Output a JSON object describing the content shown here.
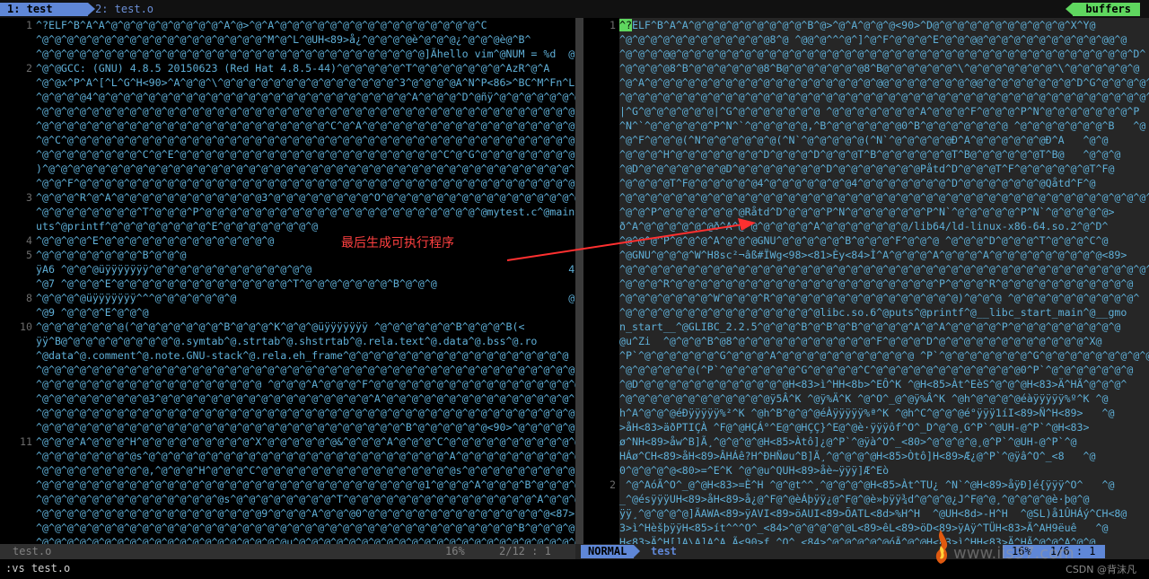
{
  "tabs": [
    {
      "label": "1: test"
    },
    {
      "label": "2: test.o"
    }
  ],
  "buffers_label": "buffers",
  "left_pane": {
    "rows": [
      {
        "n": "1",
        "t": "^?ELF^B^A^A^@^@^@^@^@^@^@^@^@^A^@>^@^A^@^@^@^@^@^@^@^@^@^@^@^@^@^@^@^@^C"
      },
      {
        "n": "",
        "t": "^@^@^@^@^@^@^@^@^@^@^@^@^@^@^@^@^@^@^M^@^L^@UH<89>å¿^@^@^@^@è^@^@^@¿^@^@^@è@^B^"
      },
      {
        "n": "",
        "t": "^@^@^@^@^@^@^@^@^@^@^@^@^@^@^@^@^@^@^@^@^@^@^@^@^@^@^@^@^@^@^@]Ãhello vim^@NUM = %d  @^@"
      },
      {
        "n": "2",
        "t": "^@^@GCC: (GNU) 4.8.5 20150623 (Red Hat 4.8.5-44)^@^@^@^@^@^T^@^@^@^@^@^@^@^AzR^@^A"
      },
      {
        "n": "",
        "t": "^@^@x^P^A^[^L^G^H<90>^A^@^@^\\^@^@^@^@^@^@^@^@^@^@^@^@^@^@^3^@^@^@^@A^N^P<86>^BC^M^Fn^L^G^H^"
      },
      {
        "n": "",
        "t": "^@^@^@^@4^@^@^@^@^@^@^@^@^@^@^@^@^@^@^@^@^@^@^@^@^@^@^@^@^@^A^@^@^@^D^@ñÿ^@^@^@^@^@^@^@"
      },
      {
        "n": "",
        "t": "^@^@^@^@^@^@^@^@^@^@^@^@^@^@^@^@^@^@^@^@^@^@^@^@^@^@^@^@^@^@^@^@^@^@^@^@^@^@^@^@^@^@^@^@"
      },
      {
        "n": "",
        "t": "^@^@^@^@^@^@^@^@^@^@^@^@^@^@^@^@^@^@^@^@^@^@^@^C^@^A^@^@^@^@^@^@^@^@^@^@^@^@^@^@^@^@^@^C"
      },
      {
        "n": "",
        "t": "^@^C^@^@^@^@^@^@^@^@^@^@^@^@^@^@^@^@^@^@^@^@^@^@^@^@^@^@^@^@^@^@^@^@^@^@^@^@^@^@^@^@^@^@^@"
      },
      {
        "n": "",
        "t": "^@^@^@^@^@^@^@^@^C^@^E^@^@^@^@^@^@^@^@^@^@^@^@^@^@^@^@^@^@^@^@^@^C^@^G^@^@^@^@^@^@^@^@^@^@^@"
      },
      {
        "n": "",
        "t": ")^@^@^@^@^@^@^@^@^@^@^@^@^@^@^@^@^@^@^@^@^@^@^@^@^@^@^@^@^@^@^@^@^@^@^@^@^@^@^@^@^@^@^C^@^@^"
      },
      {
        "n": "",
        "t": "^@^@^F^@^@^@^@^@^@^@^@^@^@^@^@^@^@^@^@^@^@^@^@^@^@^@^@^@^@^@^@^@^@^@^@^@^@^@^@^@^@^@^@^@^@"
      },
      {
        "n": "3",
        "t": "^@^@^@^R^@^A^@^@^@^@^@^@^@^@^@^@^@^@3^@^@^@^@^@^@^@^@^O^@^@^@^@^@^@^@^@^@^@^@^@^@^@^@^@^@^@^@"
      },
      {
        "n": "",
        "t": "^@^@^@^@^@^@^@^@^T^@^@^@^P^@^@^@^@^@^@^@^@^@^@^@^@^@^@^@^@^@^@^@^@^@^@^@mytest.c^@main^@p"
      },
      {
        "n": "",
        "t": "uts^@printf^@^@^@^@^@^@^@^@^E^@^@^@^@^@^@^@^@"
      },
      {
        "n": "4",
        "t": "^@^@^@^@^E^@^@^@^@^@^@^@^@^@^@^@^@^@^@"
      },
      {
        "n": "5",
        "t": "^@^@^@^@^@^@^@^@^B^@^@^@"
      },
      {
        "n": "",
        "t": "ÿA6 ^@^@^@üÿÿÿÿÿÿÿ^@^@^@^@^@^@^@^@^@^@^@^@^@                                         4"
      },
      {
        "n": "",
        "t": "^@7 ^@^@^@^E^@^@^@^@^@^@^@^@^@^@^@^@^@^@^T^@^@^@^@^@^@^@^B^@^@^@"
      },
      {
        "n": "8",
        "t": "^@^@^@^@üÿÿÿÿÿÿÿ^^^@^@^@^@^@^@^@                                                     @"
      },
      {
        "n": "",
        "t": "^@9 ^@^@^@^E^@^@^@"
      },
      {
        "n": "10",
        "t": "^@^@^@^@^@^@^@(^@^@^@^@^@^@^@^B^@^@^@^K^@^@^@üÿÿÿÿÿÿÿ ^@^@^@^@^@^@^B^@^@^@^B(<"
      },
      {
        "n": "",
        "t": "ÿÿ^B@^@^@^@^@^@^@^@^@^@.symtab^@.strtab^@.shstrtab^@.rela.text^@.data^@.bss^@.ro"
      },
      {
        "n": "",
        "t": "^@data^@.comment^@.note.GNU-stack^@.rela.eh_frame^@^@^@^@^@^@^@^@^@^@^@^@^@^@^@^@^@^@"
      },
      {
        "n": "",
        "t": "^@^@^@^@^@^@^@^@^@^@^@^@^@^@^@^@^@^@^@^@^@^@^@^@^@^@^@^@^@^@^@^@^@^@^@^@^@^@^@^@^@^@^@^@^@^@"
      },
      {
        "n": "",
        "t": "^@^@^@^@^@^@^@^@^@^@^@^@^@^@^@^@^@^@ ^@^@^@^A^@^@^@^F^@^@^@^@^@^@^@^@^@^@^@^@^@^@^@^@^@^@@^"
      },
      {
        "n": "",
        "t": "^@^@^@^@^@^@^@^@^@3^@^@^@^@^@^@^@^@^@^@^@^@^@^@^@^@^@^A^@^@^@^@^@^@^@^@^@^@^@^@^@^@^@^[^@"
      },
      {
        "n": "",
        "t": "^@^@^@^@^@^@^@^@^@^@^@^@^@^@^@^@^@^@^@^@^@^@^@^@^@^@^@^@^@^@^@^@^@^@^@^@^@^@^@^@^@^@^@^@^@"
      },
      {
        "n": "",
        "t": "^@^@^@^@^@^@^@^@^@^@^@^@^@^@^@^@^@^@^@^@^@^@^@^@^@^@^@^@^@^B^@^@^@^@^@^@<90>^@^@^@^@^@^@^@^@"
      },
      {
        "n": "11",
        "t": "^@^@^@^A^@^@^@^H^@^@^@^@^@^@^@^@^@^X^@^@^@^@^@^@&^@^@^@^A^@^@^@^C^@^@^@^@^@^@^@^@^@^@^@"
      },
      {
        "n": "",
        "t": "^@^@^@^@^@^@^@^@s^@^@^@^@^@^@^@^@^@^@^@^@^@^@^@^@^@^@^@^@^@^@^@^@^A^@^@^@^@^@^@^@^@^@^@^@"
      },
      {
        "n": "",
        "t": "^@^@^@^@^@^@^@^@^@,^@^@^@^H^@^@^@^C^@^@^@^@^@^@^@^@^@^@^@^@^@^@^@^@s^@^@^@^@^@^@^@^@^@^@^@"
      },
      {
        "n": "",
        "t": "^@^@^@^@^@^@^@^@^@^@^@^@^@^@^@^@^@^@^@^@^@^@^@^@^@^@^@^@^@^@^@1^@^@^@^A^@^@^@^B^@^@^@^@^@^@"
      },
      {
        "n": "",
        "t": "^@^@^@^@^@^@^@^@^@^@^@^@^@^@^@s^@^@^@^@^@^@^@^@^T^@^@^@^@^@^@^@^@^@^@^@^@^@^@^@^A^@^@^@^@^@"
      },
      {
        "n": "",
        "t": "^@^@^@^@^@^@^@^@^@^@^@^@^@^@^@^@^@^@9^@^@^@^A^@^@^@0^@^@^@^@^@^@^@^@^@^@^@^@^@^@^@<87>^@^@^@"
      },
      {
        "n": "",
        "t": "^@^@^@^@^@^@^@^@^@^@^@^@^@^@^@^@^@^@^@^@^@^@^@^@^@^@^@^@^@^@^@^@^@^@^@^@^@^@^B^@^@^@^@^@^@^@"
      },
      {
        "n": "",
        "t": "^@^@^@^@^@^@^@^@^@^@^@^@^@^@^@^@^@^@^@^@µ^@^@^@^@^@^@^@^@^@^@^@^@^@^@^@^@^@^@^@^@^@^@^@^@^@"
      },
      {
        "n": "",
        "t": "^@^@^@^@^A^@^@^@^@^@^@^@^@^@^@^@^@^@^@^@^@^@^@^@^@^@W^@^@^@^@^@^@^B^@^@^@^@^@^@^@^@^@^@^@^@^@"
      },
      {
        "n": "",
        "t": "^@^@^@^@^@^@^@^@^@^@^@^@^@^8^@^@^@^@^@^@^@^@^@^@^@^@^@^@^@^@^@^@^@^H^@^@^@^@^@^@^@^@^@@@@@"
      }
    ]
  },
  "right_pane": {
    "rows": [
      {
        "n": "1",
        "cursor": "^?",
        "t": "ELF^B^A^A^@^@^@^@^@^@^@^@^@^B^@>^@^A^@^@^@<90>^D@^@^@^@^@^@^@^@^@^@^@^X^Y@"
      },
      {
        "n": "",
        "t": "^@^@^@^@^@^@^@^@^@^@^@^@8^@ ^@@^@^^^@^]^@^F^@^@^@^E^@^@^@@^@^@^@^@^@^@^@^@^@^@@^@"
      },
      {
        "n": "",
        "t": "^@^@^@^@@^@^@^@^@^@^@^@^@^@^@^@^@^@^@^@^@^@^@^@^@^@^@^@^@^@^@^@^@^@^@^@^@^@^@^@^@^D^"
      },
      {
        "n": "",
        "t": "^@^@^@^@8^B^@^@^@^@^@^@8^B@^@^@^@^@^@^@8^B@^@^@^@^@^@^\\^@^@^@^@^@^@^@^\\^@^@^@^@^@^@"
      },
      {
        "n": "",
        "t": "^@^A^@^@^@^@^@^@^@^@^@^@^@^@^@^@^@^@^@^@^@@^@^@^@^@^@^@^@@^@^@^@^@^@^@^@^D^G^@^@^@^@^@"
      },
      {
        "n": "",
        "t": "^@^@^@^@^@^@^@^@^@^@^@^@^@^@^@^@^@^@^@^@^@^@^@^@^@^@^@^@^@^@^@^@^@^@^@^@^@^@^@^@^@^@^@^@"
      },
      {
        "n": "",
        "t": "|^G^@^@^@^@^@^@|^G^@^@^@^@^@^@^@ ^@^@^@^@^@^@^@^A^@^@^@^F^@^@^@^P^N^@^@^@^@^@^@^@^P"
      },
      {
        "n": "",
        "t": "^N^`^@^@^@^@^@^P^N^`^@^@^@^@^@,^B^@^@^@^@^@^@0^B^@^@^@^@^@^@^@ ^@^@^@^@^@^@^@^B   ^@"
      },
      {
        "n": "",
        "t": "^@^F^@^@^@(^N^@^@^@^@^@^@(^N`^@^@^@^@^@(^N`^@^@^@^@^@Ð^A^@^@^@^@^@^@Ð^A   ^@^@"
      },
      {
        "n": "",
        "t": "^@^@^@^H^@^@^@^@^@^@^@^D^@^@^@^D^@^@^@T^B^@^@^@^@^@^@T^B@^@^@^@^@^@T^B@   ^@^@^@"
      },
      {
        "n": "",
        "t": "^@D^@^@^@^@^@^@^@D^@^@^@^@^@^@^@^D^@^@^@^@^@^@^@Påtd^D^@^@^@T^F^@^@^@^@^@^@T^F@"
      },
      {
        "n": "",
        "t": "^@^@^@^@T^F@^@^@^@^@^@4^@^@^@^@^@^@^@4^@^@^@^@^@^@^@^D^@^@^@^@^@^@^@Qåtd^F^@"
      },
      {
        "n": "",
        "t": "^@^@^@^@^@^@^@^@^@^@^@^@^@^@^@^@^@^@^@^@^@^@^@^@^@^@^@^@^@^@^@^@^@^@^@^@^@^@^@^@^@^@^@^@"
      },
      {
        "n": "",
        "t": "^@^@^P^@^@^@^@^@^@^@Råtd^D^@^@^@^P^N^@^@^@^@^@^@^P^N`^@^@^@^@^@^P^N`^@^@^@^@^@>"
      },
      {
        "n": "",
        "t": "ð^A^@^@^@^@^@^@ð^A^@^@^@^@^@^@^A^@^@^@^@^@^@^@/lib64/ld-linux-x86-64.so.2^@^D^"
      },
      {
        "n": "",
        "t": "^@^@^@^P^@^@^@^A^@^@^@GNU^@^@^@^@^@^B^@^@^@^F^@^@^@ ^@^@^@^D^@^@^@^T^@^@^@^C^@"
      },
      {
        "n": "",
        "t": "^@GNU^@^@^@^W^H8sc²¬âß#ÏWg<98><81>Èy<84>Ì^A^@^@^@^A^@^@^@^A^@^@^@^@^@^@^@^@^@<89>"
      },
      {
        "n": "",
        "t": "^@^@^@^@^@^@^@^@^@^@^@^@^@^@^@^@^@^@^@^@^@^@^@^@^@^@^@^@^@^@^@^@^@^@^@^@^@^@^@^@^@^@^@^K"
      },
      {
        "n": "",
        "t": "^@^@^@^R^@^@^@^@^@^@^@^@^@^@^@^@^@^@^@^@^@^@^@^@^@^P^@^@^@^R^@^@^@^@^@^@^@^@^@^@^@"
      },
      {
        "n": "",
        "t": "^@^@^@^@^@^@^@^W^@^@^@^R^@^@^@^@^@^@^@^@^@^@^@^@^@^@^@)^@^@^@ ^@^@^@^@^@^@^@^@^@^@^"
      },
      {
        "n": "",
        "t": "^@^@^@^@^@^@^@^@^@^@^@^@^@^@^@^@libc.so.6^@puts^@printf^@__libc_start_main^@__gmo"
      },
      {
        "n": "",
        "t": "n_start__^@GLIBC_2.2.5^@^@^@^B^@^B^@^B^@^@^@^@^A^@^A^@^@^@^@^P^@^@^@^@^@^@^@^@^@"
      },
      {
        "n": "",
        "t": "@u^Zi  ^@^@^@^B^@8^@^@^@^@^@^@^@^@^@^@^@^F^@^@^@^D^@^@^@^@^@^@^@^@^@^@^@^@^X@"
      },
      {
        "n": "",
        "t": "^P`^@^@^@^@^@^@^G^@^@^@^A^@^@^@^@^@^@^@^@^@^@^@ ^P`^@^@^@^@^@^@^@^G^@^@^@^@^@^@^@^@^@"
      },
      {
        "n": "",
        "t": "^@^@^@^@^@^@(^P`^@^@^@^@^@^@^G^@^@^@^@^C^@^@^@^@^@^@^@^@^@^@^@^@0^P`^@^@^@^@^@^@^@"
      },
      {
        "n": "",
        "t": "^@D^@^@^@^@^@^@^@^@^@^@^@^@H<83>ì^HH<8b>^EÔ^K ^@H<85>Àt^EèS^@^@^@H<83>Ä^HÃ^@^@^@^"
      },
      {
        "n": "",
        "t": "^@^@^@^@^@^@^@^@^@^@^@^@ÿ5Â^K ^@ÿ%Ä^K ^@^O^_@^@ÿ%Â^K ^@h^@^@^@^@éàÿÿÿÿÿ%º^K ^@"
      },
      {
        "n": "",
        "t": "h^A^@^@^@éÐÿÿÿÿÿ%²^K ^@h^B^@^@^@éÀÿÿÿÿÿ%ª^K ^@h^C^@^@^@é°ÿÿÿ1íI<89>Ñ^H<89>   ^@"
      },
      {
        "n": "",
        "t": ">åH<83>äðPTIÇÀ ^F@^@HÇÁ°^E@^@HÇÇ}^E@^@è·ÿÿÿôf^O^_D^@^@¸G^P`^@UH-@^P`^@H<83>"
      },
      {
        "n": "",
        "t": "ø^NH<89>åw^B]Ã¸^@^@^@^@H<85>Àtô]¿@^P`^@ÿà^O^_<80>^@^@^@^@¸@^P`^@UH-@^P`^@"
      },
      {
        "n": "",
        "t": "HÁø^CH<89>åH<89>ÂHÁê?H^ÐHÑøu^B]Ã¸^@^@^@^@H<85>Òtô]H<89>Æ¿@^P`^@ÿâ^O^_<8   ^@"
      },
      {
        "n": "",
        "t": "0^@^@^@^@<80>=^E^K ^@^@u^QUH<89>åè~ÿÿÿ]Æ^Eò"
      },
      {
        "n": "2",
        "t": " ^@^AóÃ^O^_@^@H<83>=È^H ^@^@t^^¸^@^@^@^@H<85>Àt^TU¿ ^N`^@H<89>åÿÐ]é{ÿÿÿ^O^   ^@"
      },
      {
        "n": "",
        "t": "_^@ésÿÿÿUH<89>åH<89>å¿@^F@^@èÁþÿÿ¿@^F@^@è»þÿÿ¾d^@^@^@¿J^F@^@¸^@^@^@^@è·þ@^@"
      },
      {
        "n": "",
        "t": "ÿÿ¸^@^@^@^@]ÃAWA<89>ÿAVI<89>öAUI<89>ÕATL<8d>%H^H  ^@UH<8d>-H^H  ^@SL)å1ÛHÁý^CH<8@"
      },
      {
        "n": "",
        "t": "3>ì^HèšþÿÿH<85>ít^^^O^_<84>^@^@^@^@^@L<89>êL<89>öD<89>ÿAÿ^TÜH<83>Ã^AH9ëuê   ^@"
      },
      {
        "n": "",
        "t": "H<83>Ä^H[]A\\A]A^A_Ã<90>f.^O^_<84>^@^@^@^@^@óÃ^@^@H<83>ì^HH<83>Ä^HÃ^@^@^A^@^@"
      },
      {
        "n": "",
        "t": "^@^@^@^@^@^@^@^@hello vim^@NUM = %d"
      }
    ]
  },
  "status_left": {
    "file": "test.o",
    "percent": "16%",
    "position": "2/12 :  1"
  },
  "status_right": {
    "mode": "NORMAL",
    "file": "test",
    "percent": "16%",
    "position": "1/6 :   1"
  },
  "command_line": ":vs test.o",
  "annotation": {
    "text": "最后生成可执行程序"
  },
  "watermark": {
    "text": "www.iis37.com"
  },
  "credit": "CSDN @背沫凡",
  "colors": {
    "background": "#000000",
    "control_chars": "#5fafd7",
    "line_numbers": "#6c6c6c",
    "tab_active": "#5f87d7",
    "buffers_badge": "#5fd75f",
    "annotation_red": "#ff4040"
  }
}
